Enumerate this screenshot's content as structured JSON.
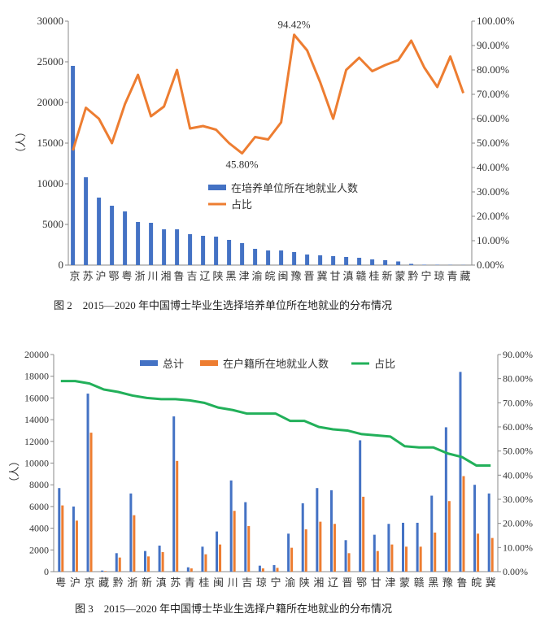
{
  "chart_data": [
    {
      "type": "bar+line",
      "title": "图 2　2015—2020 年中国博士毕业生选择培养单位所在地就业的分布情况",
      "ylabel": "（人）",
      "ylim": [
        0,
        30000
      ],
      "yticks": [
        "0",
        "5000",
        "10000",
        "15000",
        "20000",
        "25000",
        "30000"
      ],
      "y2lim": [
        0,
        100
      ],
      "y2ticks": [
        "0.00%",
        "10.00%",
        "20.00%",
        "30.00%",
        "40.00%",
        "50.00%",
        "60.00%",
        "70.00%",
        "80.00%",
        "90.00%",
        "100.00%"
      ],
      "categories": [
        "京",
        "苏",
        "沪",
        "鄂",
        "粤",
        "浙",
        "川",
        "湘",
        "鲁",
        "吉",
        "辽",
        "陕",
        "黑",
        "津",
        "渝",
        "皖",
        "闽",
        "豫",
        "晋",
        "冀",
        "甘",
        "滇",
        "赣",
        "桂",
        "新",
        "蒙",
        "黔",
        "宁",
        "琼",
        "青",
        "藏"
      ],
      "series": [
        {
          "name": "在培养单位所在地就业人数",
          "type": "bar",
          "axis": "left",
          "color": "#4472C4",
          "values": [
            24500,
            10800,
            8300,
            7300,
            6600,
            5300,
            5200,
            4400,
            4400,
            3800,
            3600,
            3500,
            3100,
            2700,
            2000,
            1800,
            1800,
            1600,
            1300,
            1200,
            1100,
            1000,
            900,
            700,
            600,
            450,
            150,
            50,
            40,
            30,
            20
          ]
        },
        {
          "name": "占比",
          "type": "line",
          "axis": "right",
          "color": "#ED7D31",
          "values": [
            47,
            64.5,
            60,
            50,
            66,
            78,
            61,
            65,
            80,
            56,
            57,
            55.5,
            50,
            45.8,
            52.5,
            51.5,
            58.5,
            94.42,
            88,
            75,
            60,
            80,
            85,
            79.5,
            82,
            84,
            92,
            81,
            73,
            85.5,
            70.5
          ]
        }
      ],
      "annotations": [
        {
          "text": "94.42%",
          "category": "豫",
          "value": 94.42
        },
        {
          "text": "45.80%",
          "category": "津",
          "value": 45.8
        }
      ],
      "legend": "center"
    },
    {
      "type": "bar+line",
      "title": "图 3　2015—2020 年中国博士毕业生选择户籍所在地就业的分布情况",
      "ylabel": "（人）",
      "ylim": [
        0,
        20000
      ],
      "yticks": [
        "0",
        "2000",
        "4000",
        "6000",
        "8000",
        "10000",
        "12000",
        "14000",
        "16000",
        "18000",
        "20000"
      ],
      "y2lim": [
        0,
        90
      ],
      "y2ticks": [
        "0.00%",
        "10.00%",
        "20.00%",
        "30.00%",
        "40.00%",
        "50.00%",
        "60.00%",
        "70.00%",
        "80.00%",
        "90.00%"
      ],
      "categories": [
        "粤",
        "沪",
        "京",
        "藏",
        "黔",
        "浙",
        "新",
        "滇",
        "苏",
        "青",
        "桂",
        "闽",
        "川",
        "吉",
        "琼",
        "宁",
        "渝",
        "陕",
        "湘",
        "辽",
        "晋",
        "鄂",
        "甘",
        "津",
        "蒙",
        "赣",
        "黑",
        "豫",
        "鲁",
        "皖",
        "冀"
      ],
      "series": [
        {
          "name": "总计",
          "type": "bar",
          "axis": "left",
          "color": "#4472C4",
          "values": [
            7700,
            6000,
            16400,
            100,
            1700,
            7200,
            1900,
            2400,
            14300,
            400,
            2300,
            3700,
            8400,
            6400,
            550,
            600,
            3500,
            6300,
            7700,
            7500,
            2900,
            12100,
            3400,
            4400,
            4500,
            4500,
            7000,
            13300,
            18400,
            8000,
            7200
          ]
        },
        {
          "name": "在户籍所在地就业人数",
          "type": "bar",
          "axis": "left",
          "color": "#ED7D31",
          "values": [
            6100,
            4700,
            12800,
            50,
            1300,
            5200,
            1400,
            1800,
            10200,
            300,
            1600,
            2500,
            5600,
            4200,
            300,
            350,
            2200,
            3900,
            4600,
            4400,
            1700,
            6900,
            1900,
            2500,
            2300,
            2300,
            3600,
            6500,
            8800,
            3500,
            3100
          ]
        },
        {
          "name": "占比",
          "type": "line",
          "axis": "right",
          "color": "#22B05A",
          "values": [
            79,
            79,
            78,
            75.5,
            74.5,
            73,
            72,
            71.5,
            71.5,
            71,
            70,
            68,
            67,
            65.5,
            65.5,
            65.5,
            62.5,
            62.5,
            60,
            59,
            58.5,
            57,
            56.5,
            56,
            52,
            51.5,
            51.5,
            49,
            47.5,
            44,
            44
          ]
        }
      ],
      "legend": "top"
    }
  ]
}
